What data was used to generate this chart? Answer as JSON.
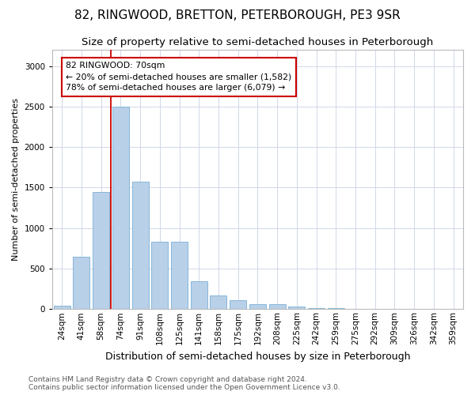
{
  "title": "82, RINGWOOD, BRETTON, PETERBOROUGH, PE3 9SR",
  "subtitle": "Size of property relative to semi-detached houses in Peterborough",
  "xlabel": "Distribution of semi-detached houses by size in Peterborough",
  "ylabel": "Number of semi-detached properties",
  "categories": [
    "24sqm",
    "41sqm",
    "58sqm",
    "74sqm",
    "91sqm",
    "108sqm",
    "125sqm",
    "141sqm",
    "158sqm",
    "175sqm",
    "192sqm",
    "208sqm",
    "225sqm",
    "242sqm",
    "259sqm",
    "275sqm",
    "292sqm",
    "309sqm",
    "326sqm",
    "342sqm",
    "359sqm"
  ],
  "values": [
    40,
    650,
    1450,
    2500,
    1570,
    830,
    830,
    340,
    165,
    110,
    60,
    60,
    32,
    15,
    8,
    4,
    3,
    3,
    2,
    2,
    2
  ],
  "bar_color": "#b8d0e8",
  "bar_edge_color": "#7aafd4",
  "vline_color": "#cc0000",
  "annotation_box_edge_color": "#cc0000",
  "annotation_text": "82 RINGWOOD: 70sqm\n← 20% of semi-detached houses are smaller (1,582)\n78% of semi-detached houses are larger (6,079) →",
  "ylim": [
    0,
    3200
  ],
  "yticks": [
    0,
    500,
    1000,
    1500,
    2000,
    2500,
    3000
  ],
  "footer_line1": "Contains HM Land Registry data © Crown copyright and database right 2024.",
  "footer_line2": "Contains public sector information licensed under the Open Government Licence v3.0.",
  "background_color": "#ffffff",
  "grid_color": "#d0d8e8",
  "title_fontsize": 11,
  "subtitle_fontsize": 9.5,
  "xlabel_fontsize": 9,
  "ylabel_fontsize": 8,
  "tick_fontsize": 7.5,
  "footer_fontsize": 6.5,
  "annotation_fontsize": 7.8
}
